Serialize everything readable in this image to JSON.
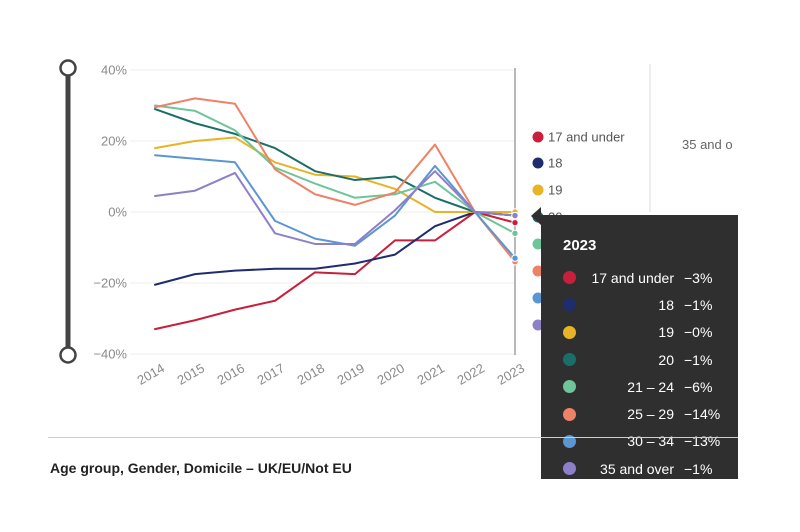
{
  "chart_data": {
    "type": "line",
    "x": [
      "2014",
      "2015",
      "2016",
      "2017",
      "2018",
      "2019",
      "2020",
      "2021",
      "2022",
      "2023"
    ],
    "y_ticks": [
      "40%",
      "20%",
      "0%",
      "−20%",
      "−40%"
    ],
    "ylim": [
      -40,
      40
    ],
    "grid": true,
    "series": [
      {
        "name": "17 and under",
        "color": "#c8203a",
        "values": [
          -33,
          -30.5,
          -27.5,
          -25,
          -17,
          -17.5,
          -8,
          -8,
          0,
          -3
        ]
      },
      {
        "name": "18",
        "color": "#1f2d6e",
        "values": [
          -20.5,
          -17.5,
          -16.5,
          -16,
          -16,
          -14.5,
          -12,
          -4,
          0,
          -1
        ]
      },
      {
        "name": "19",
        "color": "#e8b324",
        "values": [
          18,
          20,
          21,
          14,
          10.5,
          10,
          6.5,
          0,
          0,
          0
        ]
      },
      {
        "name": "20",
        "color": "#1a6e6a",
        "values": [
          29,
          25,
          22,
          18,
          11.5,
          9,
          10,
          4,
          0,
          -1
        ]
      },
      {
        "name": "21 – 24",
        "color": "#6fc49a",
        "values": [
          30,
          28.5,
          23,
          12.5,
          8,
          4,
          5,
          8.5,
          0,
          -6
        ]
      },
      {
        "name": "25 – 29",
        "color": "#ec8266",
        "values": [
          29.5,
          32,
          30.5,
          12,
          5,
          2,
          5.5,
          19,
          0,
          -14
        ]
      },
      {
        "name": "30 – 34",
        "color": "#5b96d2",
        "values": [
          16,
          15,
          14,
          -2.5,
          -7.5,
          -9.5,
          -1,
          13,
          0,
          -13
        ]
      },
      {
        "name": "35 and over",
        "color": "#8e7fc9",
        "values": [
          4.5,
          6,
          11,
          -6,
          -9,
          -9,
          0.5,
          11.5,
          0,
          -1
        ]
      }
    ],
    "legend_visible": [
      "17 and under",
      "18",
      "19"
    ],
    "legend_partial": [
      "20"
    ],
    "side_label": "35 and o",
    "footer": "Age group, Gender, Domicile – UK/EU/Not EU",
    "tooltip": {
      "title": "2023",
      "rows": [
        {
          "label": "17 and under",
          "value": "−3%",
          "color": "#c8203a"
        },
        {
          "label": "18",
          "value": "−1%",
          "color": "#1f2d6e"
        },
        {
          "label": "19",
          "value": "−0%",
          "color": "#e8b324"
        },
        {
          "label": "20",
          "value": "−1%",
          "color": "#1a6e6a"
        },
        {
          "label": "21 – 24",
          "value": "−6%",
          "color": "#6fc49a"
        },
        {
          "label": "25 – 29",
          "value": "−14%",
          "color": "#ec8266"
        },
        {
          "label": "30 – 34",
          "value": "−13%",
          "color": "#5b96d2"
        },
        {
          "label": "35 and over",
          "value": "−1%",
          "color": "#8e7fc9"
        }
      ]
    }
  }
}
